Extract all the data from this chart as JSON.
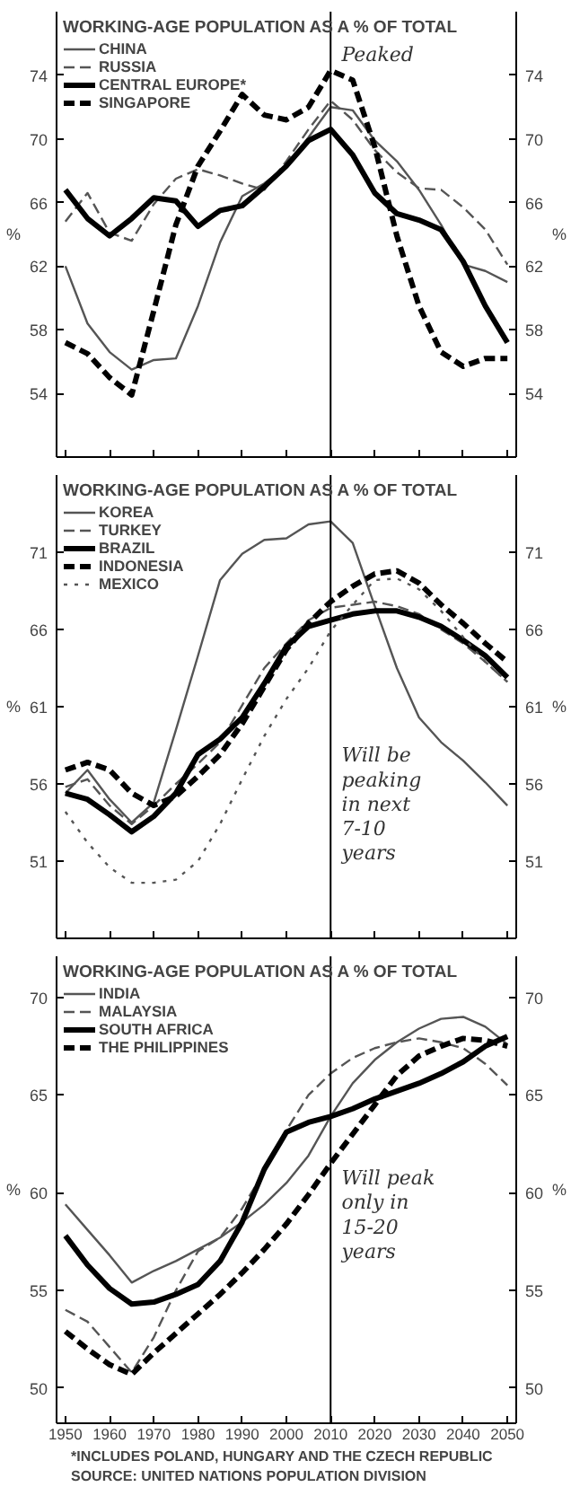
{
  "chart_data": [
    {
      "type": "line",
      "legend_title": "WORKING-AGE POPULATION AS A % OF TOTAL",
      "ylabel": "%",
      "y2label": "%",
      "x": [
        1950,
        1955,
        1960,
        1965,
        1970,
        1975,
        1980,
        1985,
        1990,
        1995,
        2000,
        2005,
        2010,
        2015,
        2020,
        2025,
        2030,
        2035,
        2040,
        2045,
        2050
      ],
      "xlim": [
        1948,
        2052
      ],
      "xticks": [
        1950,
        1960,
        1970,
        1980,
        1990,
        2000,
        2010,
        2020,
        2030,
        2040,
        2050
      ],
      "ylim": [
        50,
        78
      ],
      "yticks": [
        54,
        58,
        62,
        66,
        70,
        74
      ],
      "y2lim": [
        50,
        78
      ],
      "y2ticks": [
        54,
        58,
        62,
        66,
        70,
        74
      ],
      "tick_labels": "y",
      "legend": "top left",
      "grid": false,
      "marker": "none",
      "series": [
        {
          "name": "CHINA",
          "color": "#555555",
          "line_style": "solid",
          "values": [
            62,
            58.4,
            56.6,
            55.5,
            56.1,
            56.2,
            59.5,
            63.5,
            66.4,
            67.2,
            68.3,
            70.1,
            72,
            71.8,
            69.9,
            68.6,
            66.8,
            64.6,
            62.1,
            61.7,
            61
          ]
        },
        {
          "name": "RUSSIA",
          "color": "#555555",
          "line_style": "dashed",
          "values": [
            64.8,
            66.6,
            64.1,
            63.6,
            65.9,
            67.5,
            68.1,
            67.7,
            67.2,
            66.8,
            68.6,
            70.6,
            72.4,
            71.2,
            69.3,
            67.9,
            66.9,
            66.8,
            65.7,
            64.3,
            62.1
          ]
        },
        {
          "name": "CENTRAL EUROPE*",
          "color": "#000000",
          "line_style": "solid",
          "values": [
            66.8,
            65,
            63.9,
            65,
            66.3,
            66.1,
            64.5,
            65.5,
            65.8,
            67,
            68.3,
            69.9,
            70.6,
            69,
            66.6,
            65.3,
            64.9,
            64.3,
            62.3,
            59.5,
            57.2
          ]
        },
        {
          "name": "SINGAPORE",
          "color": "#000000",
          "line_style": "dashed",
          "values": [
            57.2,
            56.5,
            55,
            53.9,
            59.2,
            64.6,
            68.3,
            70.5,
            72.8,
            71.5,
            71.2,
            72,
            74.3,
            73.7,
            69.5,
            63.9,
            59.5,
            56.6,
            55.7,
            56.2,
            56.2
          ]
        }
      ],
      "ref_lines": [
        {
          "axis": "x",
          "value": 2010,
          "color": "#000000"
        }
      ],
      "annotations": [
        "Peaked"
      ]
    },
    {
      "type": "line",
      "legend_title": "WORKING-AGE POPULATION AS A % OF TOTAL",
      "ylabel": "%",
      "y2label": "%",
      "x": [
        1950,
        1955,
        1960,
        1965,
        1970,
        1975,
        1980,
        1985,
        1990,
        1995,
        2000,
        2005,
        2010,
        2015,
        2020,
        2025,
        2030,
        2035,
        2040,
        2045,
        2050
      ],
      "xlim": [
        1948,
        2052
      ],
      "xticks": [
        1950,
        1960,
        1970,
        1980,
        1990,
        2000,
        2010,
        2020,
        2030,
        2040,
        2050
      ],
      "ylim": [
        46,
        76
      ],
      "yticks": [
        51,
        56,
        61,
        66,
        71
      ],
      "y2lim": [
        46,
        76
      ],
      "y2ticks": [
        51,
        56,
        61,
        66,
        71
      ],
      "tick_labels": "y",
      "legend": "top left",
      "grid": false,
      "marker": "none",
      "series": [
        {
          "name": "KOREA",
          "color": "#555555",
          "line_style": "solid",
          "values": [
            55.4,
            56.9,
            55,
            53.5,
            54.8,
            59.5,
            64.3,
            69.2,
            70.9,
            71.8,
            71.9,
            72.8,
            73,
            71.6,
            67.5,
            63.5,
            60.3,
            58.7,
            57.5,
            56.1,
            54.6
          ]
        },
        {
          "name": "TURKEY",
          "color": "#555555",
          "line_style": "dashed",
          "values": [
            55.8,
            56.3,
            54.6,
            53.4,
            54.6,
            56,
            57.3,
            58.7,
            61.1,
            63.5,
            65.1,
            66.6,
            67.4,
            67.6,
            67.8,
            67.5,
            67,
            66,
            65.1,
            63.9,
            62.6
          ]
        },
        {
          "name": "BRAZIL",
          "color": "#000000",
          "line_style": "solid",
          "values": [
            55.4,
            55,
            54,
            52.9,
            53.9,
            55.4,
            57.9,
            58.9,
            60.3,
            62.5,
            64.9,
            66.2,
            66.6,
            67,
            67.2,
            67.2,
            66.8,
            66.2,
            65.3,
            64.3,
            62.9
          ]
        },
        {
          "name": "INDONESIA",
          "color": "#000000",
          "line_style": "dashed",
          "values": [
            56.9,
            57.4,
            56.9,
            55.4,
            54.6,
            55.2,
            56.5,
            57.9,
            59.9,
            62.3,
            64.7,
            66.4,
            67.8,
            68.8,
            69.6,
            69.8,
            69,
            67.6,
            66.4,
            65.1,
            63.9
          ]
        },
        {
          "name": "MEXICO",
          "color": "#555555",
          "line_style": "dotted",
          "values": [
            54.2,
            52.2,
            50.6,
            49.6,
            49.6,
            49.8,
            51,
            53.4,
            56.3,
            59.1,
            61.5,
            63.5,
            65.9,
            67.6,
            69.2,
            69.3,
            68.6,
            67.2,
            65.5,
            63.9,
            62.6
          ]
        }
      ],
      "ref_lines": [
        {
          "axis": "x",
          "value": 2010,
          "color": "#000000"
        }
      ],
      "annotations": [
        "Will be\npeaking\nin next\n7-10\nyears"
      ]
    },
    {
      "type": "line",
      "legend_title": "WORKING-AGE POPULATION AS A % OF TOTAL",
      "ylabel": "%",
      "y2label": "%",
      "x": [
        1950,
        1955,
        1960,
        1965,
        1970,
        1975,
        1980,
        1985,
        1990,
        1995,
        2000,
        2005,
        2010,
        2015,
        2020,
        2025,
        2030,
        2035,
        2040,
        2045,
        2050
      ],
      "xlim": [
        1948,
        2052
      ],
      "xticks": [
        1950,
        1960,
        1970,
        1980,
        1990,
        2000,
        2010,
        2020,
        2030,
        2040,
        2050
      ],
      "ylim": [
        48.2,
        72.1
      ],
      "yticks": [
        50,
        55,
        60,
        65,
        70
      ],
      "y2lim": [
        48.2,
        72.1
      ],
      "y2ticks": [
        50,
        55,
        60,
        65,
        70
      ],
      "legend": "top left",
      "grid": false,
      "marker": "none",
      "series": [
        {
          "name": "INDIA",
          "color": "#555555",
          "line_style": "solid",
          "values": [
            59.4,
            58.1,
            56.8,
            55.4,
            56,
            56.5,
            57.1,
            57.7,
            58.5,
            59.4,
            60.5,
            61.9,
            63.9,
            65.6,
            66.8,
            67.7,
            68.4,
            68.9,
            69,
            68.5,
            67.6
          ]
        },
        {
          "name": "MALAYSIA",
          "color": "#555555",
          "line_style": "dashed",
          "values": [
            54,
            53.4,
            52.1,
            50.8,
            52.6,
            55,
            57,
            57.7,
            59.2,
            61.1,
            63.2,
            65,
            66.1,
            66.9,
            67.4,
            67.7,
            67.9,
            67.7,
            67.4,
            66.6,
            65.5
          ]
        },
        {
          "name": "SOUTH AFRICA",
          "color": "#000000",
          "line_style": "solid",
          "values": [
            57.8,
            56.3,
            55.1,
            54.3,
            54.4,
            54.8,
            55.3,
            56.5,
            58.5,
            61.2,
            63.1,
            63.6,
            63.9,
            64.3,
            64.8,
            65.2,
            65.6,
            66.1,
            66.7,
            67.5,
            68
          ]
        },
        {
          "name": "THE PHILIPPINES",
          "color": "#000000",
          "line_style": "dashed",
          "values": [
            52.9,
            52,
            51.2,
            50.7,
            51.8,
            52.8,
            53.8,
            54.8,
            55.9,
            57.1,
            58.4,
            59.9,
            61.5,
            63,
            64.5,
            66,
            67,
            67.5,
            67.9,
            67.8,
            67.5
          ]
        }
      ],
      "ref_lines": [
        {
          "axis": "x",
          "value": 2010,
          "color": "#000000"
        }
      ],
      "annotations": [
        "Will peak\nonly in\n15-20\nyears",
        "*INCLUDES POLAND, HUNGARY AND THE CZECH REPUBLIC",
        "SOURCE:  UNITED NATIONS POPULATION DIVISION"
      ]
    }
  ]
}
